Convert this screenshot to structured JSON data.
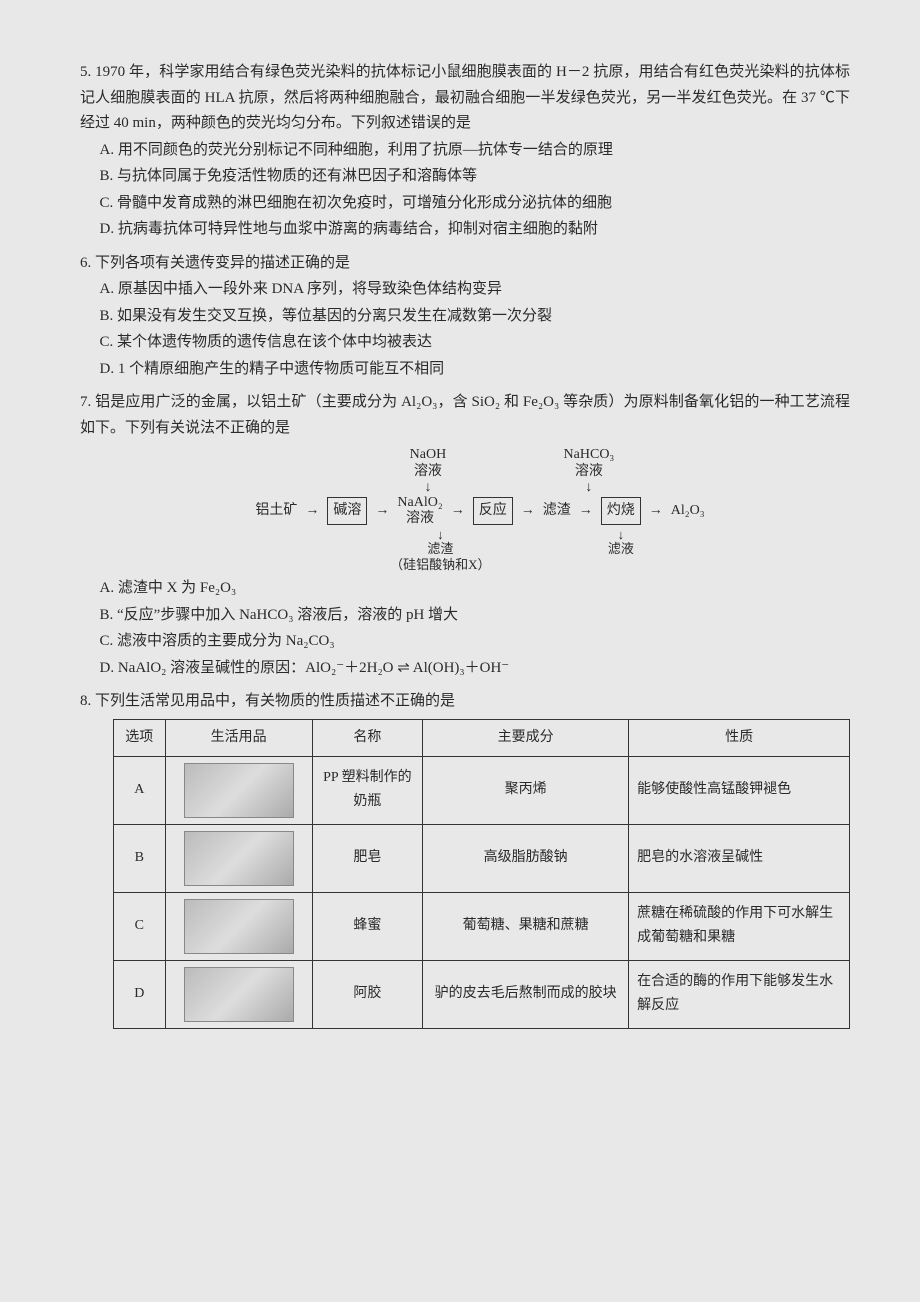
{
  "q5": {
    "number": "5.",
    "stem": "1970 年，科学家用结合有绿色荧光染料的抗体标记小鼠细胞膜表面的 H－2 抗原，用结合有红色荧光染料的抗体标记人细胞膜表面的 HLA 抗原，然后将两种细胞融合，最初融合细胞一半发绿色荧光，另一半发红色荧光。在 37 ℃下经过 40 min，两种颜色的荧光均匀分布。下列叙述错误的是",
    "A": "A. 用不同颜色的荧光分别标记不同种细胞，利用了抗原—抗体专一结合的原理",
    "B": "B. 与抗体同属于免疫活性物质的还有淋巴因子和溶酶体等",
    "C": "C. 骨髓中发育成熟的淋巴细胞在初次免疫时，可增殖分化形成分泌抗体的细胞",
    "D": "D. 抗病毒抗体可特异性地与血浆中游离的病毒结合，抑制对宿主细胞的黏附"
  },
  "q6": {
    "number": "6.",
    "stem": "下列各项有关遗传变异的描述正确的是",
    "A": "A. 原基因中插入一段外来 DNA 序列，将导致染色体结构变异",
    "B": "B. 如果没有发生交叉互换，等位基因的分离只发生在减数第一次分裂",
    "C": "C. 某个体遗传物质的遗传信息在该个体中均被表达",
    "D": "D. 1 个精原细胞产生的精子中遗传物质可能互不相同"
  },
  "q7": {
    "number": "7.",
    "stem": "铝是应用广泛的金属，以铝土矿（主要成分为 Al₂O₃，含 SiO₂ 和 Fe₂O₃ 等杂质）为原料制备氧化铝的一种工艺流程如下。下列有关说法不正确的是",
    "flow": {
      "in1_top": "NaOH",
      "in1_bot": "溶液",
      "in2_top": "NaHCO₃",
      "in2_bot": "溶液",
      "start": "铝土矿",
      "step1": "碱溶",
      "mid_top": "NaAlO₂",
      "mid_bot": "溶液",
      "step2": "反应",
      "slag": "滤渣",
      "step3": "灼烧",
      "end": "Al₂O₃",
      "res1_top": "滤渣",
      "res1_bot": "（硅铝酸钠和X）",
      "res2": "滤液"
    },
    "A": "A. 滤渣中 X 为 Fe₂O₃",
    "B": "B. “反应”步骤中加入 NaHCO₃ 溶液后，溶液的 pH 增大",
    "C": "C. 滤液中溶质的主要成分为 Na₂CO₃",
    "D": "D. NaAlO₂ 溶液呈碱性的原因：AlO₂⁻＋2H₂O ⇌ Al(OH)₃＋OH⁻"
  },
  "q8": {
    "number": "8.",
    "stem": "下列生活常见用品中，有关物质的性质描述不正确的是",
    "headers": [
      "选项",
      "生活用品",
      "名称",
      "主要成分",
      "性质"
    ],
    "rows": [
      {
        "opt": "A",
        "name": "PP 塑料制作的奶瓶",
        "comp": "聚丙烯",
        "prop": "能够使酸性高锰酸钾褪色"
      },
      {
        "opt": "B",
        "name": "肥皂",
        "comp": "高级脂肪酸钠",
        "prop": "肥皂的水溶液呈碱性"
      },
      {
        "opt": "C",
        "name": "蜂蜜",
        "comp": "葡萄糖、果糖和蔗糖",
        "prop": "蔗糖在稀硫酸的作用下可水解生成葡萄糖和果糖"
      },
      {
        "opt": "D",
        "name": "阿胶",
        "comp": "驴的皮去毛后熬制而成的胶块",
        "prop": "在合适的酶的作用下能够发生水解反应"
      }
    ]
  }
}
